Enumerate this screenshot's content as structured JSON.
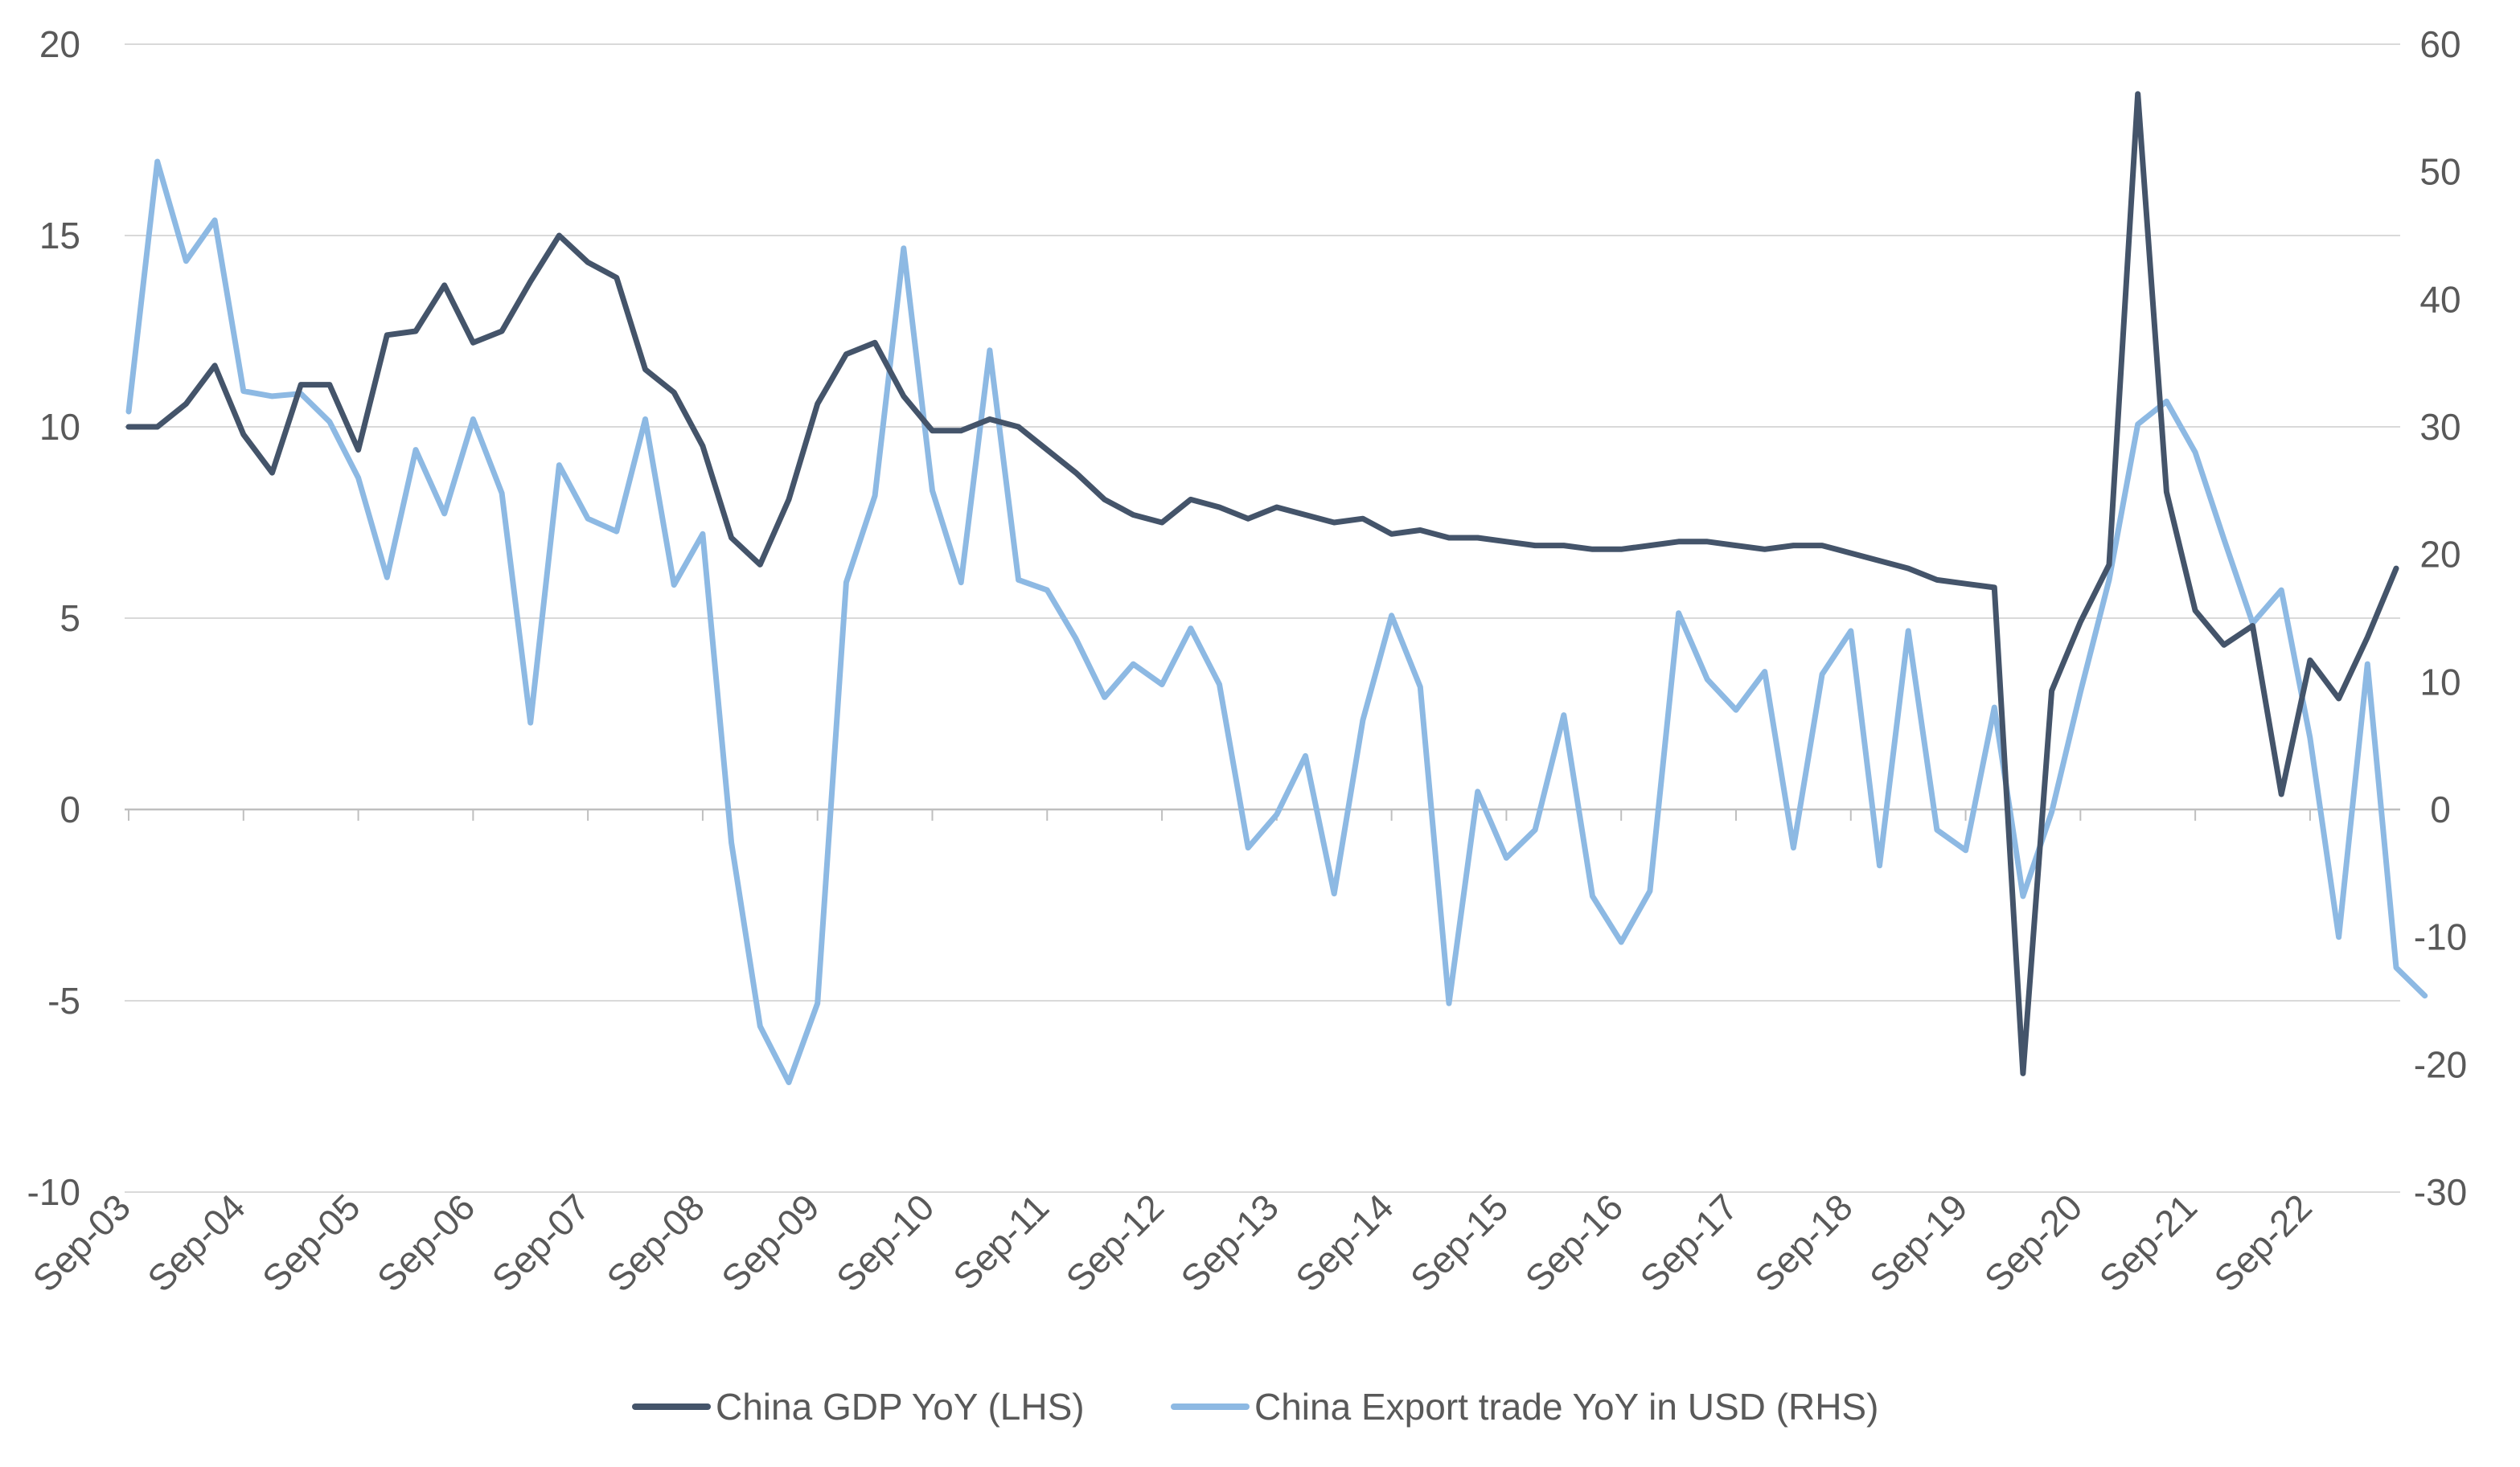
{
  "chart_data": {
    "type": "line",
    "title": "",
    "xlabel": "",
    "ylabel_left": "",
    "ylabel_right": "",
    "y_left_range": [
      -10,
      20
    ],
    "y_left_ticks": [
      -10,
      -5,
      0,
      5,
      10,
      15,
      20
    ],
    "y_right_range": [
      -30,
      60
    ],
    "y_right_ticks": [
      -30,
      -20,
      -10,
      0,
      10,
      20,
      30,
      40,
      50,
      60
    ],
    "x_tick_labels": [
      "Sep-03",
      "Sep-04",
      "Sep-05",
      "Sep-06",
      "Sep-07",
      "Sep-08",
      "Sep-09",
      "Sep-10",
      "Sep-11",
      "Sep-12",
      "Sep-13",
      "Sep-14",
      "Sep-15",
      "Sep-16",
      "Sep-17",
      "Sep-18",
      "Sep-19",
      "Sep-20",
      "Sep-21",
      "Sep-22"
    ],
    "x_quarter_start": "Sep-03",
    "gridlines": "horizontal",
    "legend_position": "bottom",
    "series": [
      {
        "name": "China GDP YoY (LHS)",
        "axis": "left",
        "color": "#44546A",
        "values": [
          10.0,
          10.0,
          10.6,
          11.6,
          9.8,
          8.8,
          11.1,
          11.1,
          9.4,
          12.4,
          12.5,
          13.7,
          12.2,
          12.5,
          13.8,
          15.0,
          14.3,
          13.9,
          11.5,
          10.9,
          9.5,
          7.1,
          6.4,
          8.1,
          10.6,
          11.9,
          12.2,
          10.8,
          9.9,
          9.9,
          10.2,
          10.0,
          9.4,
          8.8,
          8.1,
          7.7,
          7.5,
          8.1,
          7.9,
          7.6,
          7.9,
          7.7,
          7.5,
          7.6,
          7.2,
          7.3,
          7.1,
          7.1,
          7.0,
          6.9,
          6.9,
          6.8,
          6.8,
          6.9,
          7.0,
          7.0,
          6.9,
          6.8,
          6.9,
          6.9,
          6.7,
          6.5,
          6.3,
          6.0,
          5.9,
          5.8,
          -6.9,
          3.1,
          4.9,
          6.4,
          18.7,
          8.3,
          5.2,
          4.3,
          4.8,
          0.4,
          3.9,
          2.9,
          4.5,
          6.3
        ]
      },
      {
        "name": "China Export trade YoY in USD (RHS)",
        "axis": "right",
        "color": "#8DB9E3",
        "values": [
          31.2,
          50.8,
          43.0,
          46.2,
          32.8,
          32.4,
          32.6,
          30.4,
          26.0,
          18.2,
          28.2,
          23.2,
          30.6,
          24.8,
          6.8,
          27.0,
          22.8,
          21.8,
          30.6,
          17.6,
          21.6,
          -2.6,
          -17.0,
          -21.4,
          -15.2,
          17.8,
          24.6,
          44.0,
          25.0,
          17.8,
          36.0,
          18.0,
          17.2,
          13.4,
          8.8,
          11.4,
          9.8,
          14.2,
          9.8,
          -3.0,
          -0.4,
          4.2,
          -6.6,
          7.0,
          15.2,
          9.6,
          -15.2,
          1.4,
          -3.8,
          -1.6,
          7.4,
          -6.8,
          -10.4,
          -6.4,
          15.4,
          10.2,
          7.8,
          10.8,
          -3.0,
          10.6,
          14.0,
          -4.4,
          14.0,
          -1.6,
          -3.2,
          8.0,
          -6.8,
          -0.2,
          9.2,
          18.0,
          30.2,
          32.0,
          28.0,
          21.2,
          14.6,
          17.2,
          5.6,
          -10.0,
          11.4,
          -12.4,
          -14.6
        ]
      }
    ]
  }
}
